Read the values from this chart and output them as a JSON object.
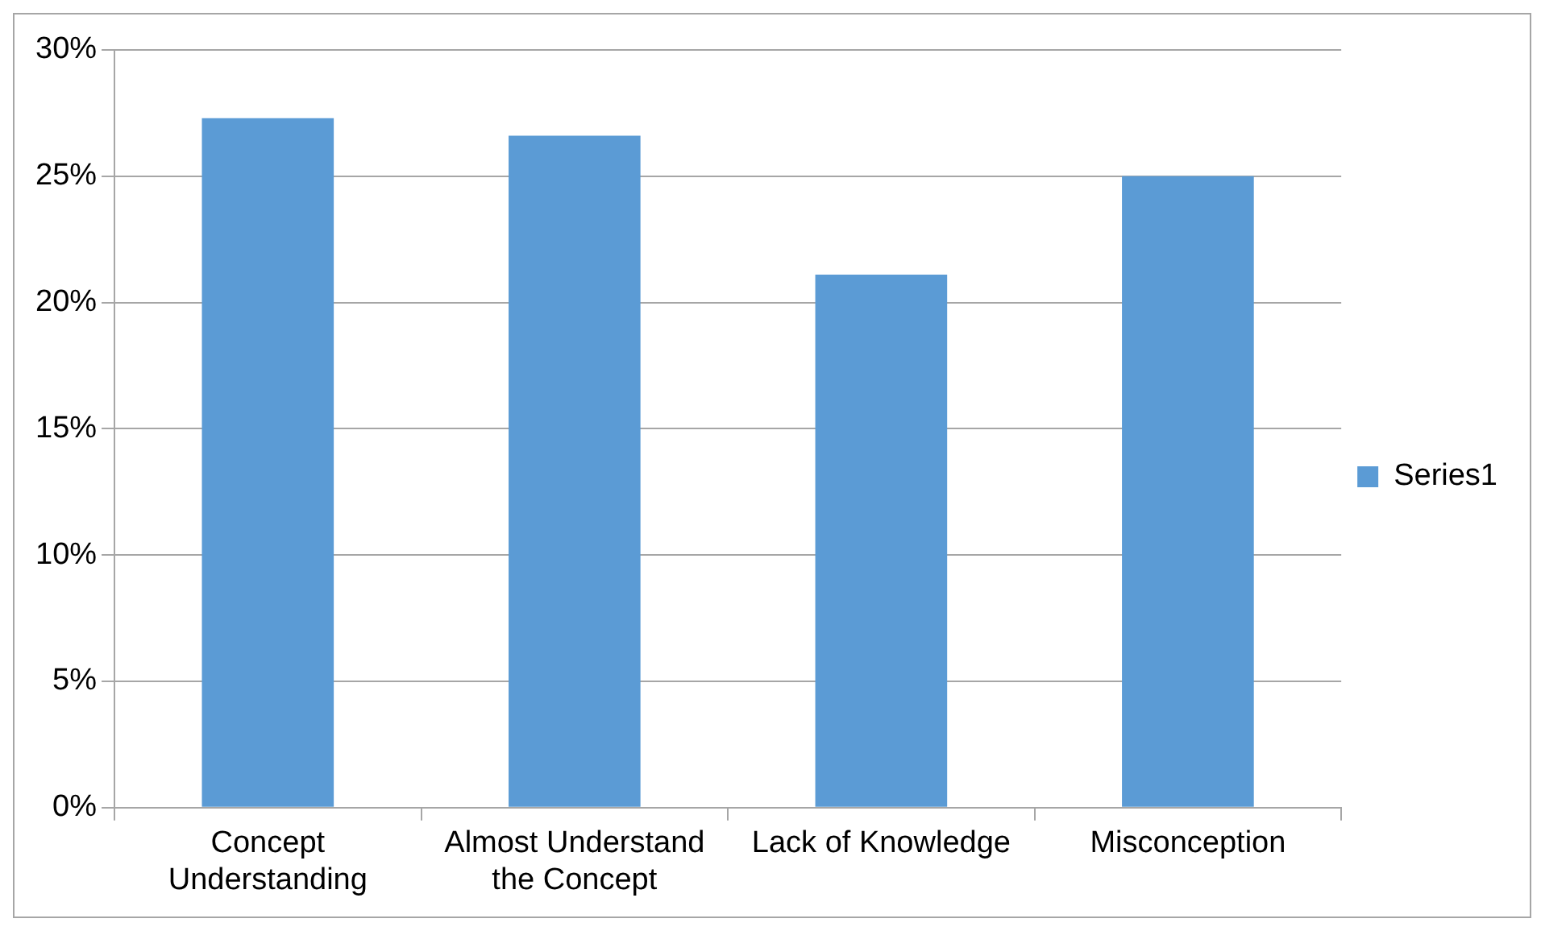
{
  "chart_data": {
    "type": "bar",
    "categories": [
      "Concept Understanding",
      "Almost Understand the Concept",
      "Lack of Knowledge",
      "Misconception"
    ],
    "series": [
      {
        "name": "Series1",
        "color": "#5b9bd5",
        "values": [
          27.3,
          26.6,
          21.1,
          25.0
        ]
      }
    ],
    "ylim": [
      0,
      30
    ],
    "yticks": [
      {
        "value": 0,
        "label": "0%"
      },
      {
        "value": 5,
        "label": "5%"
      },
      {
        "value": 10,
        "label": "10%"
      },
      {
        "value": 15,
        "label": "15%"
      },
      {
        "value": 20,
        "label": "20%"
      },
      {
        "value": 25,
        "label": "25%"
      },
      {
        "value": 30,
        "label": "30%"
      }
    ],
    "grid": "y",
    "legend": "right"
  }
}
